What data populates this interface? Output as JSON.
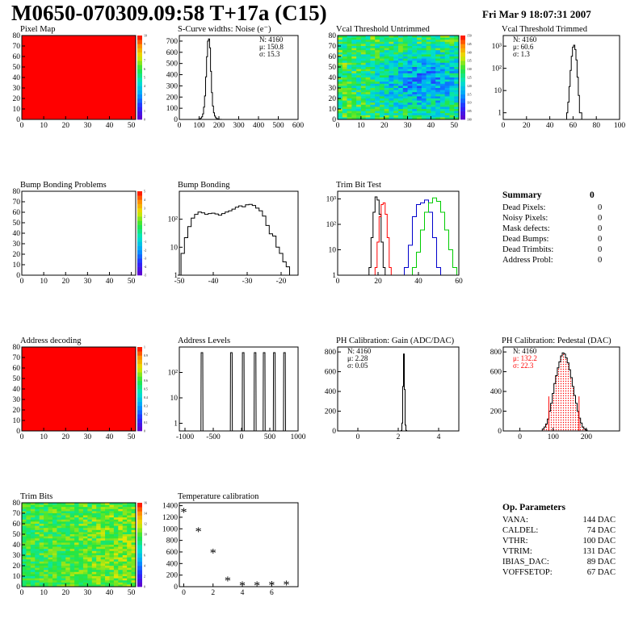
{
  "header": {
    "title": "M0650-070309.09:58 T+17a (C15)",
    "date": "Fri Mar  9 18:07:31 2007"
  },
  "colors": {
    "red": "#ff0000",
    "green": "#00cc00",
    "blue": "#0000cc",
    "black": "#000000"
  },
  "chart_data": [
    {
      "id": "pixel-map",
      "type": "heatmap",
      "title": "Pixel Map",
      "xlim": [
        0,
        52
      ],
      "ylim": [
        0,
        80
      ],
      "xticks": [
        0,
        10,
        20,
        30,
        40,
        50
      ],
      "yticks": [
        0,
        10,
        20,
        30,
        40,
        50,
        60,
        70,
        80
      ],
      "fill": "uniform",
      "value": 10,
      "zlim": [
        0,
        10
      ],
      "palette_ticks": [
        0,
        1,
        2,
        3,
        4,
        5,
        6,
        7,
        8,
        9,
        10
      ]
    },
    {
      "id": "scurve",
      "type": "histogram",
      "title": "S-Curve widths: Noise (e⁻)",
      "xlim": [
        0,
        600
      ],
      "ylim": [
        0,
        750
      ],
      "xticks": [
        0,
        100,
        200,
        300,
        400,
        500,
        600
      ],
      "yticks": [
        0,
        100,
        200,
        300,
        400,
        500,
        600,
        700
      ],
      "stats": [
        "N: 4160",
        "μ: 150.8",
        "σ: 15.3"
      ],
      "x": [
        95,
        100,
        105,
        110,
        115,
        120,
        125,
        130,
        135,
        140,
        145,
        150,
        155,
        160,
        165,
        170,
        175,
        180,
        185,
        190,
        195,
        200,
        205,
        210,
        215,
        220
      ],
      "values": [
        1,
        3,
        6,
        12,
        24,
        50,
        110,
        210,
        380,
        560,
        700,
        720,
        640,
        430,
        240,
        120,
        60,
        30,
        15,
        8,
        4,
        2,
        1,
        1,
        0,
        0
      ]
    },
    {
      "id": "vcal-untrimmed",
      "type": "heatmap",
      "title": "Vcal Threshold Untrimmed",
      "xlim": [
        0,
        52
      ],
      "ylim": [
        0,
        80
      ],
      "xticks": [
        0,
        10,
        20,
        30,
        40,
        50
      ],
      "yticks": [
        0,
        10,
        20,
        30,
        40,
        50,
        60,
        70,
        80
      ],
      "fill": "noisy",
      "zlim": [
        100,
        150
      ],
      "palette_ticks": [
        100,
        105,
        110,
        115,
        120,
        125,
        130,
        135,
        140,
        145,
        150
      ]
    },
    {
      "id": "vcal-trimmed",
      "type": "histogram",
      "title": "Vcal Threshold Trimmed",
      "log": true,
      "xlim": [
        0,
        100
      ],
      "ylim": [
        0.5,
        3000
      ],
      "xticks": [
        0,
        20,
        40,
        60,
        80,
        100
      ],
      "yticks": [
        1,
        10,
        100,
        1000
      ],
      "stats": [
        "N: 4160",
        "μ: 60.6",
        "σ:  1.3"
      ],
      "x": [
        55,
        56,
        57,
        58,
        59,
        60,
        61,
        62,
        63,
        64,
        65,
        66,
        67
      ],
      "values": [
        1,
        3,
        15,
        80,
        350,
        900,
        1100,
        700,
        240,
        40,
        6,
        1,
        1
      ]
    },
    {
      "id": "bump-problems",
      "type": "heatmap",
      "title": "Bump Bonding Problems",
      "xlim": [
        0,
        52
      ],
      "ylim": [
        0,
        80
      ],
      "xticks": [
        0,
        10,
        20,
        30,
        40,
        50
      ],
      "yticks": [
        0,
        10,
        20,
        30,
        40,
        50,
        60,
        70,
        80
      ],
      "fill": "empty",
      "zlim": [
        -5,
        5
      ],
      "palette_ticks": [
        -5,
        -4,
        -3,
        -2,
        -1,
        0,
        1,
        2,
        3,
        4,
        5
      ]
    },
    {
      "id": "bump-bonding",
      "type": "histogram",
      "title": "Bump Bonding",
      "log": true,
      "xlim": [
        -50,
        -15
      ],
      "ylim": [
        1,
        1000
      ],
      "xticks": [
        -50,
        -40,
        -30,
        -20
      ],
      "yticks": [
        1,
        10,
        100
      ],
      "x": [
        -50,
        -49,
        -48,
        -47,
        -46,
        -45,
        -44,
        -43,
        -42,
        -41,
        -40,
        -39,
        -38,
        -37,
        -36,
        -35,
        -34,
        -33,
        -32,
        -31,
        -30,
        -29,
        -28,
        -27,
        -26,
        -25,
        -24,
        -23,
        -22,
        -21,
        -20,
        -19,
        -18,
        -17
      ],
      "values": [
        1,
        6,
        22,
        55,
        110,
        150,
        180,
        170,
        150,
        160,
        165,
        155,
        140,
        160,
        180,
        200,
        230,
        270,
        300,
        280,
        330,
        340,
        310,
        250,
        200,
        130,
        60,
        30,
        25,
        10,
        6,
        3,
        2,
        1
      ]
    },
    {
      "id": "trim-bit-test",
      "type": "histogram",
      "title": "Trim Bit Test",
      "log": true,
      "xlim": [
        0,
        60
      ],
      "ylim": [
        1,
        2000
      ],
      "xticks": [
        0,
        20,
        40,
        60
      ],
      "yticks": [
        1,
        10,
        100,
        1000
      ],
      "series": [
        {
          "color": "black",
          "x": [
            16,
            17,
            18,
            19,
            20,
            21,
            22,
            23
          ],
          "values": [
            2,
            30,
            300,
            1200,
            900,
            250,
            20,
            2
          ]
        },
        {
          "color": "red",
          "x": [
            19,
            20,
            21,
            22,
            23,
            24,
            25,
            26
          ],
          "values": [
            2,
            20,
            200,
            600,
            700,
            250,
            30,
            2
          ]
        },
        {
          "color": "blue",
          "x": [
            34,
            36,
            38,
            40,
            42,
            44,
            46,
            48,
            50
          ],
          "values": [
            2,
            15,
            200,
            600,
            700,
            900,
            300,
            30,
            2
          ]
        },
        {
          "color": "green",
          "x": [
            38,
            40,
            42,
            44,
            46,
            48,
            50,
            52,
            54,
            56,
            58
          ],
          "values": [
            2,
            8,
            60,
            300,
            700,
            1100,
            800,
            300,
            60,
            10,
            2
          ]
        }
      ]
    },
    {
      "id": "address-decoding",
      "type": "heatmap",
      "title": "Address decoding",
      "xlim": [
        0,
        52
      ],
      "ylim": [
        0,
        80
      ],
      "xticks": [
        0,
        10,
        20,
        30,
        40,
        50
      ],
      "yticks": [
        0,
        10,
        20,
        30,
        40,
        50,
        60,
        70,
        80
      ],
      "fill": "uniform",
      "value": 1,
      "zlim": [
        0,
        1
      ],
      "palette_ticks": [
        0,
        0.1,
        0.2,
        0.3,
        0.4,
        0.5,
        0.6,
        0.7,
        0.8,
        0.9,
        1
      ]
    },
    {
      "id": "address-levels",
      "type": "histogram",
      "title": "Address Levels",
      "log": true,
      "xlim": [
        -1100,
        1000
      ],
      "ylim": [
        0.5,
        1000
      ],
      "xticks": [
        -1000,
        -500,
        0,
        500,
        1000
      ],
      "yticks": [
        1,
        10,
        100
      ],
      "peaks": [
        -700,
        -180,
        30,
        240,
        400,
        580,
        760
      ],
      "peak_value": 600
    },
    {
      "id": "ph-gain",
      "type": "histogram",
      "title": "PH Calibration: Gain (ADC/DAC)",
      "xlim": [
        -1,
        5
      ],
      "ylim": [
        0,
        850
      ],
      "xticks": [
        0,
        2,
        4
      ],
      "yticks": [
        0,
        200,
        400,
        600,
        800
      ],
      "stats": [
        "N: 4160",
        "μ: 2.28",
        "σ: 0.05"
      ],
      "x": [
        2.16,
        2.2,
        2.24,
        2.28,
        2.32,
        2.36,
        2.4
      ],
      "values": [
        5,
        80,
        450,
        780,
        420,
        60,
        5
      ]
    },
    {
      "id": "ph-pedestal",
      "type": "histogram",
      "title": "PH Calibration: Pedestal (DAC)",
      "xlim": [
        -50,
        300
      ],
      "ylim": [
        0,
        850
      ],
      "xticks": [
        0,
        100,
        200
      ],
      "yticks": [
        0,
        200,
        400,
        600,
        800
      ],
      "stats": [
        "N: 4160",
        "μ: 132.2",
        "σ: 22.3"
      ],
      "stats_colors": [
        "black",
        "red",
        "red"
      ],
      "fit_bounds": [
        87,
        178
      ],
      "x": [
        70,
        75,
        80,
        85,
        90,
        95,
        100,
        105,
        110,
        115,
        120,
        125,
        130,
        135,
        140,
        145,
        150,
        155,
        160,
        165,
        170,
        175,
        180,
        185,
        190,
        195,
        200
      ],
      "values": [
        20,
        40,
        70,
        120,
        200,
        280,
        380,
        480,
        560,
        640,
        700,
        760,
        790,
        780,
        740,
        690,
        620,
        540,
        450,
        360,
        280,
        200,
        130,
        80,
        40,
        20,
        10
      ]
    },
    {
      "id": "trim-bits",
      "type": "heatmap",
      "title": "Trim Bits",
      "xlim": [
        0,
        52
      ],
      "ylim": [
        0,
        80
      ],
      "xticks": [
        0,
        10,
        20,
        30,
        40,
        50
      ],
      "yticks": [
        0,
        10,
        20,
        30,
        40,
        50,
        60,
        70,
        80
      ],
      "fill": "green-noisy",
      "zlim": [
        0,
        16
      ],
      "palette_ticks": [
        0,
        2,
        4,
        6,
        8,
        10,
        12,
        14,
        16
      ]
    },
    {
      "id": "temperature",
      "type": "scatter",
      "title": "Temperature calibration",
      "xlim": [
        -0.3,
        7.8
      ],
      "ylim": [
        0,
        1450
      ],
      "xticks": [
        0,
        2,
        4,
        6
      ],
      "yticks": [
        0,
        200,
        400,
        600,
        800,
        1000,
        1200,
        1400
      ],
      "x": [
        0,
        1,
        2,
        3,
        4,
        5,
        6,
        7
      ],
      "values": [
        1300,
        960,
        590,
        110,
        30,
        30,
        35,
        40
      ]
    }
  ],
  "summary": {
    "title": "Summary",
    "total": "0",
    "rows": [
      {
        "label": "Dead Pixels:",
        "value": "0"
      },
      {
        "label": "Noisy Pixels:",
        "value": "0"
      },
      {
        "label": "Mask defects:",
        "value": "0"
      },
      {
        "label": "Dead Bumps:",
        "value": "0"
      },
      {
        "label": "Dead Trimbits:",
        "value": "0"
      },
      {
        "label": "Address Probl:",
        "value": "0"
      }
    ]
  },
  "op_params": {
    "title": "Op. Parameters",
    "rows": [
      {
        "label": "VANA:",
        "value": "144 DAC"
      },
      {
        "label": "CALDEL:",
        "value": "74 DAC"
      },
      {
        "label": "VTHR:",
        "value": "100 DAC"
      },
      {
        "label": "VTRIM:",
        "value": "131 DAC"
      },
      {
        "label": "IBIAS_DAC:",
        "value": "89 DAC"
      },
      {
        "label": "VOFFSETOP:",
        "value": "67 DAC"
      }
    ]
  }
}
